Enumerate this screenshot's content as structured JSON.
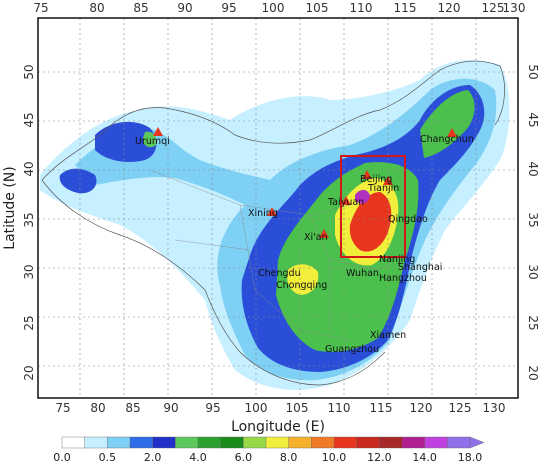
{
  "map": {
    "x_axis_label": "Longitude (E)",
    "y_axis_label": "Latitude (N)",
    "lon_ticks": [
      "75",
      "80",
      "85",
      "90",
      "95",
      "100",
      "105",
      "110",
      "115",
      "120",
      "125",
      "130"
    ],
    "lat_ticks": [
      "20",
      "25",
      "30",
      "35",
      "40",
      "45",
      "50"
    ],
    "cities": [
      {
        "name": "Urumqi"
      },
      {
        "name": "Changchun"
      },
      {
        "name": "Beijing"
      },
      {
        "name": "Tianjin"
      },
      {
        "name": "Taiyuan"
      },
      {
        "name": "Qingdao"
      },
      {
        "name": "Xining"
      },
      {
        "name": "Xi'an"
      },
      {
        "name": "Chengdu"
      },
      {
        "name": "Chongqing"
      },
      {
        "name": "Wuhan"
      },
      {
        "name": "Nanjing"
      },
      {
        "name": "Shanghai"
      },
      {
        "name": "Hangzhou"
      },
      {
        "name": "Xiamen"
      },
      {
        "name": "Guangzhou"
      }
    ],
    "highlight_box_color": "#d01818"
  },
  "colorbar": {
    "labels": [
      "0.0",
      "0.5",
      "2.0",
      "4.0",
      "6.0",
      "8.0",
      "10.0",
      "12.0",
      "14.0",
      "18.0"
    ],
    "colors": [
      "#ffffff",
      "#c6f0ff",
      "#7fd0f5",
      "#2f6ee8",
      "#2030c8",
      "#5cc85c",
      "#2ca02c",
      "#1a8a1a",
      "#96d84a",
      "#f2ee3c",
      "#f5b02c",
      "#f07a28",
      "#e8361e",
      "#c8281e",
      "#a82828",
      "#b02090",
      "#c040e0",
      "#9070e8"
    ]
  }
}
